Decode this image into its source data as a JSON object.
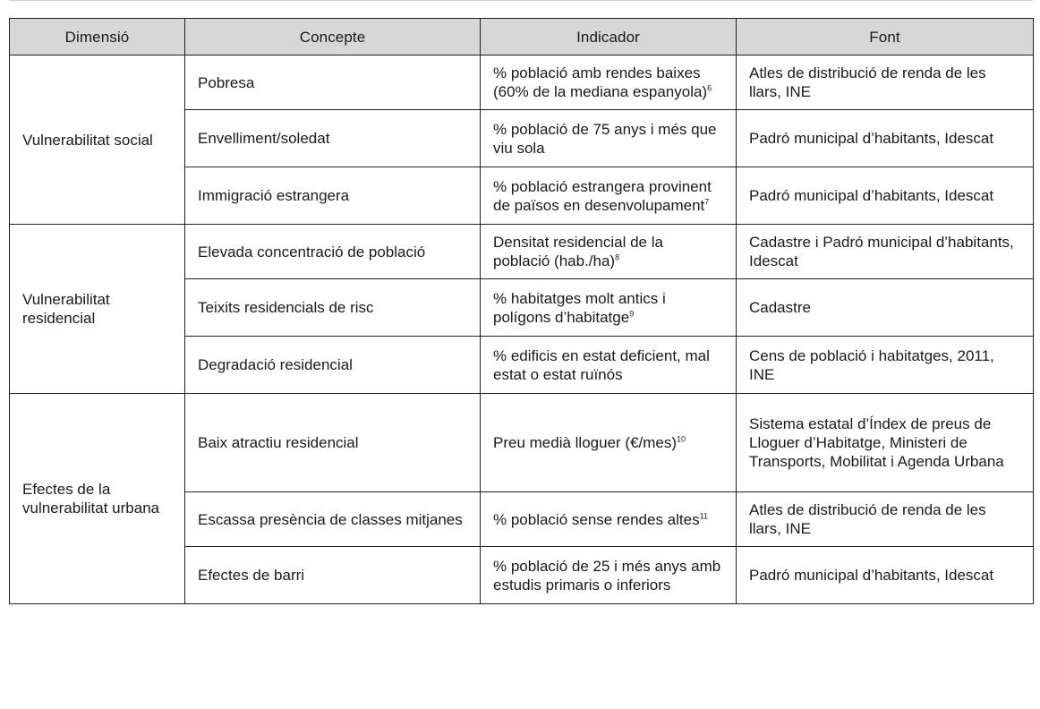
{
  "table": {
    "headers": [
      "Dimensió",
      "Concepte",
      "Indicador",
      "Font"
    ],
    "groups": [
      {
        "dimension": "Vulnerabilitat social",
        "rows": [
          {
            "concept": "Pobresa",
            "indicator": "% població amb rendes baixes (60% de la mediana espanyola)",
            "note": "6",
            "source": "Atles de distribució de renda de les llars, INE"
          },
          {
            "concept": "Envelliment/soledat",
            "indicator": "% població de 75 anys i més que viu sola",
            "note": "",
            "source": "Padró municipal d’habitants, Idescat"
          },
          {
            "concept": "Immigració estrangera",
            "indicator": "% població estrangera provinent de països en desenvolupament",
            "note": "7",
            "source": "Padró municipal d’habitants, Idescat"
          }
        ]
      },
      {
        "dimension": "Vulnerabilitat residencial",
        "rows": [
          {
            "concept": "Elevada concentració de població",
            "indicator": "Densitat residencial de la població (hab./ha)",
            "note": "8",
            "source": "Cadastre i Padró municipal d’habitants, Idescat"
          },
          {
            "concept": "Teixits residencials de risc",
            "indicator": "% habitatges molt antics i polígons d’habitatge",
            "note": "9",
            "source": "Cadastre"
          },
          {
            "concept": "Degradació residencial",
            "indicator": "% edificis en estat deficient, mal estat o estat ruïnós",
            "note": "",
            "source": "Cens de població i habitatges, 2011, INE"
          }
        ]
      },
      {
        "dimension": "Efectes de la vulnerabilitat urbana",
        "rows": [
          {
            "concept": "Baix atractiu residencial",
            "indicator": "Preu medià lloguer (€/mes)",
            "note": "10",
            "source": "Sistema estatal d’Índex de preus de Lloguer d’Habitatge, Ministeri de Transports, Mobilitat i Agenda Urbana"
          },
          {
            "concept": "Escassa presència de classes mitjanes",
            "indicator": "% població sense rendes altes",
            "note": "11",
            "source": "Atles de distribució de renda de les llars, INE"
          },
          {
            "concept": "Efectes de barri",
            "indicator": "% població de 25 i més anys amb estudis primaris o inferiors",
            "note": "",
            "source": "Padró municipal d’habitants, Idescat"
          }
        ]
      }
    ]
  }
}
